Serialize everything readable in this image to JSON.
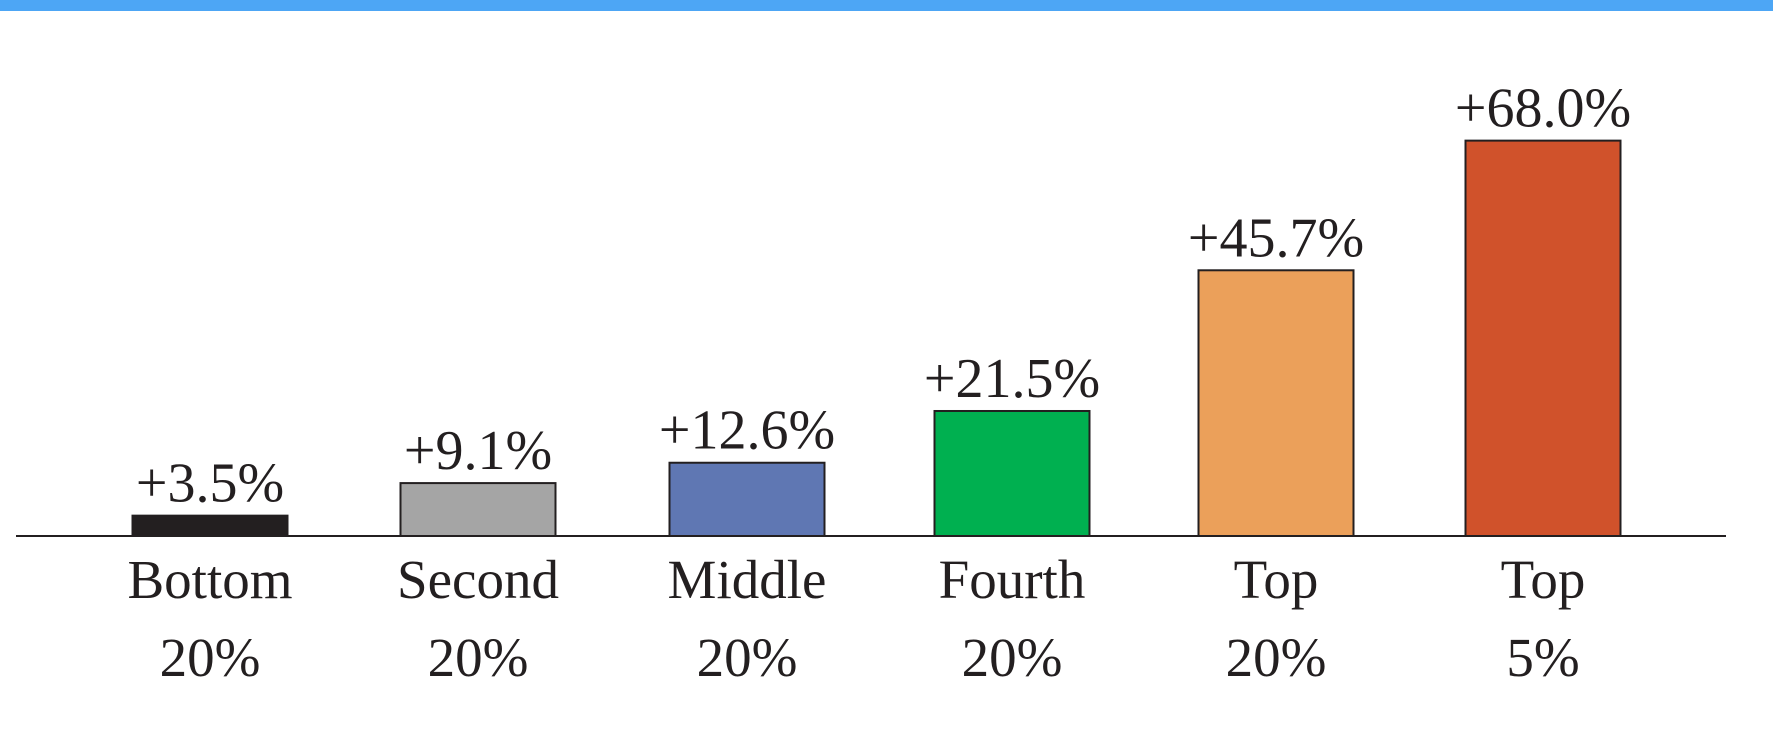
{
  "chart_data": {
    "type": "bar",
    "categories": [
      [
        "Bottom",
        "20%"
      ],
      [
        "Second",
        "20%"
      ],
      [
        "Middle",
        "20%"
      ],
      [
        "Fourth",
        "20%"
      ],
      [
        "Top",
        "20%"
      ],
      [
        "Top",
        "5%"
      ]
    ],
    "values": [
      3.5,
      9.1,
      12.6,
      21.5,
      45.7,
      68.0
    ],
    "value_labels": [
      "+3.5%",
      "+9.1%",
      "+12.6%",
      "+21.5%",
      "+45.7%",
      "+68.0%"
    ],
    "colors": [
      "#231f20",
      "#a5a5a5",
      "#5f77b3",
      "#00b050",
      "#eba05a",
      "#d0522b"
    ],
    "ylim": [
      0,
      70
    ]
  }
}
